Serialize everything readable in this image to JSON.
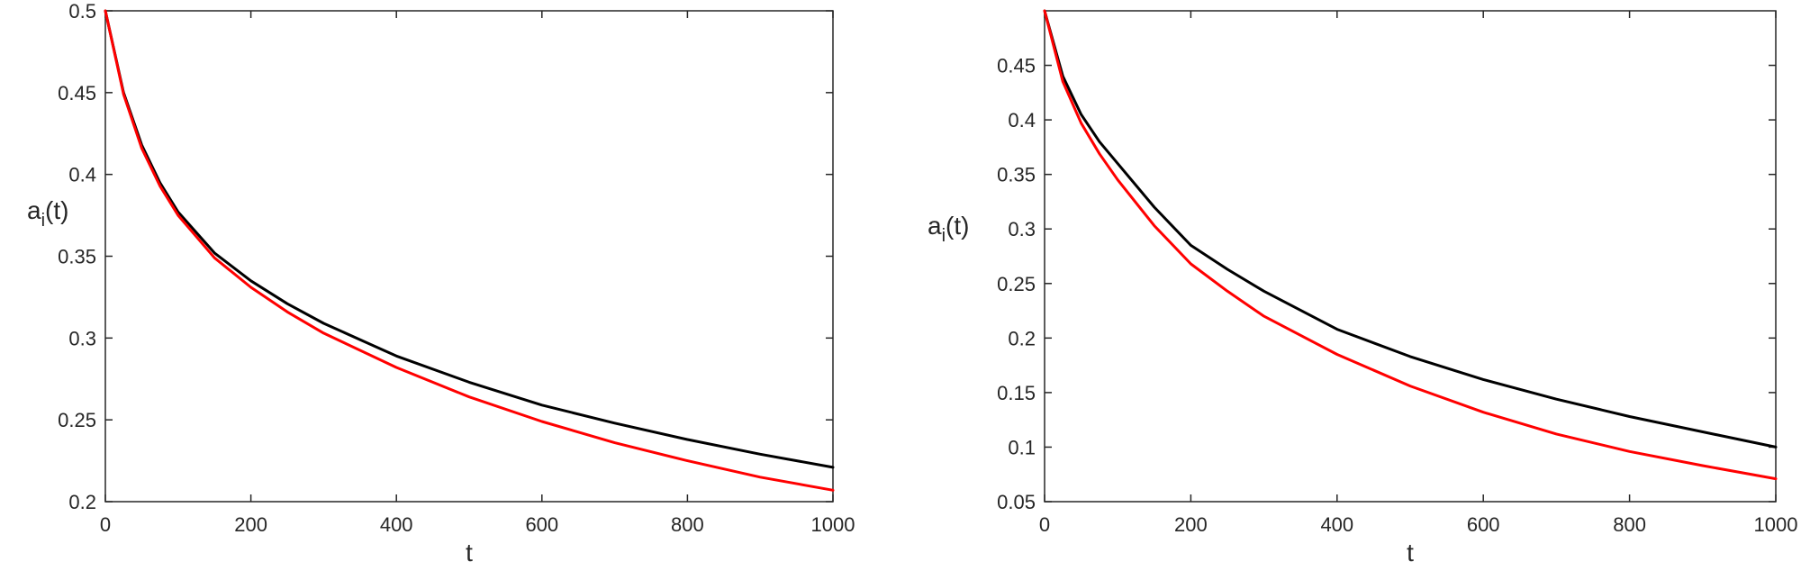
{
  "chart_data": [
    {
      "type": "line",
      "title": "",
      "xlabel": "t",
      "ylabel_main": "a",
      "ylabel_sub": "i",
      "ylabel_tail": "(t)",
      "xlim": [
        0,
        1000
      ],
      "ylim": [
        0.2,
        0.5
      ],
      "xticks": [
        0,
        200,
        400,
        600,
        800,
        1000
      ],
      "xtick_labels": [
        "0",
        "200",
        "400",
        "600",
        "800",
        "1000"
      ],
      "yticks": [
        0.2,
        0.25,
        0.3,
        0.35,
        0.4,
        0.45,
        0.5
      ],
      "ytick_labels": [
        "0.2",
        "0.25",
        "0.3",
        "0.35",
        "0.4",
        "0.45",
        "0.5"
      ],
      "grid": false,
      "x": [
        0,
        25,
        50,
        75,
        100,
        150,
        200,
        250,
        300,
        400,
        500,
        600,
        700,
        800,
        900,
        1000
      ],
      "series": [
        {
          "color": "#000000",
          "values": [
            0.5,
            0.45,
            0.418,
            0.395,
            0.377,
            0.352,
            0.335,
            0.321,
            0.309,
            0.289,
            0.273,
            0.259,
            0.248,
            0.238,
            0.229,
            0.221
          ]
        },
        {
          "color": "#ff0000",
          "values": [
            0.5,
            0.449,
            0.416,
            0.393,
            0.375,
            0.349,
            0.331,
            0.316,
            0.303,
            0.282,
            0.264,
            0.249,
            0.236,
            0.225,
            0.215,
            0.207
          ]
        }
      ]
    },
    {
      "type": "line",
      "title": "",
      "xlabel": "t",
      "ylabel_main": "a",
      "ylabel_sub": "i",
      "ylabel_tail": "(t)",
      "xlim": [
        0,
        1000
      ],
      "ylim": [
        0.05,
        0.5
      ],
      "xticks": [
        0,
        200,
        400,
        600,
        800,
        1000
      ],
      "xtick_labels": [
        "0",
        "200",
        "400",
        "600",
        "800",
        "1000"
      ],
      "yticks": [
        0.05,
        0.1,
        0.15,
        0.2,
        0.25,
        0.3,
        0.35,
        0.4,
        0.45
      ],
      "ytick_labels": [
        "0.05",
        "0.1",
        "0.15",
        "0.2",
        "0.25",
        "0.3",
        "0.35",
        "0.4",
        "0.45"
      ],
      "grid": false,
      "x": [
        0,
        25,
        50,
        75,
        100,
        150,
        200,
        250,
        300,
        400,
        500,
        600,
        700,
        800,
        900,
        1000
      ],
      "series": [
        {
          "color": "#000000",
          "values": [
            0.5,
            0.44,
            0.405,
            0.38,
            0.36,
            0.32,
            0.285,
            0.263,
            0.243,
            0.208,
            0.183,
            0.162,
            0.144,
            0.128,
            0.114,
            0.1
          ]
        },
        {
          "color": "#ff0000",
          "values": [
            0.5,
            0.435,
            0.397,
            0.369,
            0.345,
            0.303,
            0.268,
            0.243,
            0.22,
            0.185,
            0.156,
            0.132,
            0.112,
            0.096,
            0.083,
            0.071
          ]
        }
      ]
    }
  ]
}
